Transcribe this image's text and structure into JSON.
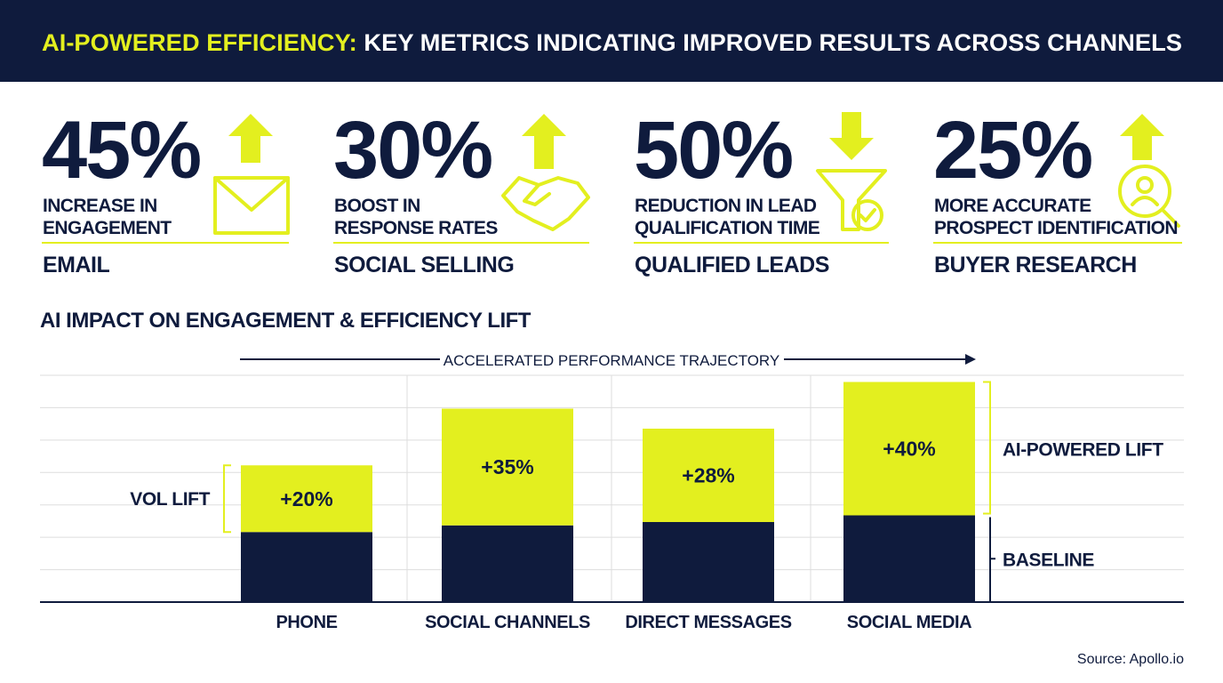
{
  "header": {
    "title_highlight": "AI-POWERED EFFICIENCY:",
    "title": "KEY METRICS INDICATING IMPROVED RESULTS ACROSS CHANNELS"
  },
  "stats": [
    {
      "value": "45%",
      "description": [
        "INCREASE IN",
        "ENGAGEMENT"
      ],
      "channel": "EMAIL"
    },
    {
      "value": "30%",
      "description": [
        "BOOST IN",
        "RESPONSE RATES"
      ],
      "channel": "SOCIAL SELLING"
    },
    {
      "value": "50%",
      "description": [
        "REDUCTION IN LEAD",
        "QUALIFICATION TIME"
      ],
      "channel": "QUALIFIED LEADS"
    },
    {
      "value": "25%",
      "description": [
        "MORE ACCURATE",
        "PROSPECT IDENTIFICATION"
      ],
      "channel": "BUYER RESEARCH"
    }
  ],
  "chart_data": {
    "type": "stacked_bar",
    "title": "AI IMPACT ON ENGAGEMENT & EFFICIENCY LIFT",
    "annotations": {
      "trajectory": "ACCELERATED PERFORMANCE TRAJECTORY",
      "vol_lift": "VOL LIFT"
    },
    "categories": [
      "PHONE",
      "SOCIAL CHANNELS",
      "DIRECT MESSAGES",
      "SOCIAL MEDIA"
    ],
    "series": [
      {
        "name": "BASELINE",
        "color": "#0f1b3d",
        "values": [
          21,
          23,
          24,
          26
        ]
      },
      {
        "name": "AI-POWERED LIFT",
        "color": "#e3ef1f",
        "values": [
          20,
          35,
          28,
          40
        ],
        "value_labels": [
          "+20%",
          "+35%",
          "+28%",
          "+40%"
        ]
      }
    ],
    "ylim": [
      0,
      68
    ],
    "grid": true
  },
  "source": "Source: Apollo.io"
}
